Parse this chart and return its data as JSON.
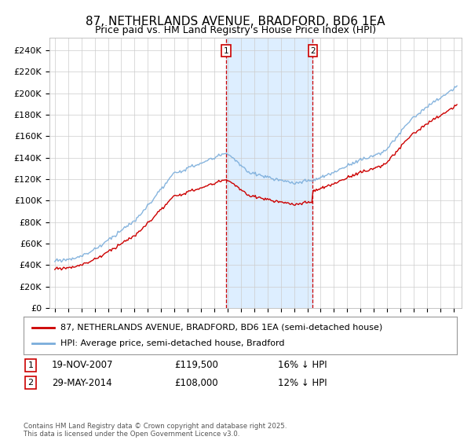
{
  "title": "87, NETHERLANDS AVENUE, BRADFORD, BD6 1EA",
  "subtitle": "Price paid vs. HM Land Registry's House Price Index (HPI)",
  "ylabel_ticks": [
    "£0",
    "£20K",
    "£40K",
    "£60K",
    "£80K",
    "£100K",
    "£120K",
    "£140K",
    "£160K",
    "£180K",
    "£200K",
    "£220K",
    "£240K"
  ],
  "ylim": [
    0,
    252000
  ],
  "xlim_start": 1994.6,
  "xlim_end": 2025.6,
  "sale1_x": 2007.89,
  "sale1_price": 119500,
  "sale1_label": "1",
  "sale1_date": "19-NOV-2007",
  "sale1_hpi": "16% ↓ HPI",
  "sale2_x": 2014.41,
  "sale2_price": 108000,
  "sale2_label": "2",
  "sale2_date": "29-MAY-2014",
  "sale2_hpi": "12% ↓ HPI",
  "line_color_property": "#cc0000",
  "line_color_hpi": "#7aaddb",
  "shade_color": "#ddeeff",
  "marker_box_color": "#cc0000",
  "legend_property": "87, NETHERLANDS AVENUE, BRADFORD, BD6 1EA (semi-detached house)",
  "legend_hpi": "HPI: Average price, semi-detached house, Bradford",
  "footnote": "Contains HM Land Registry data © Crown copyright and database right 2025.\nThis data is licensed under the Open Government Licence v3.0.",
  "title_fontsize": 11,
  "subtitle_fontsize": 9,
  "tick_fontsize": 8,
  "legend_fontsize": 8
}
